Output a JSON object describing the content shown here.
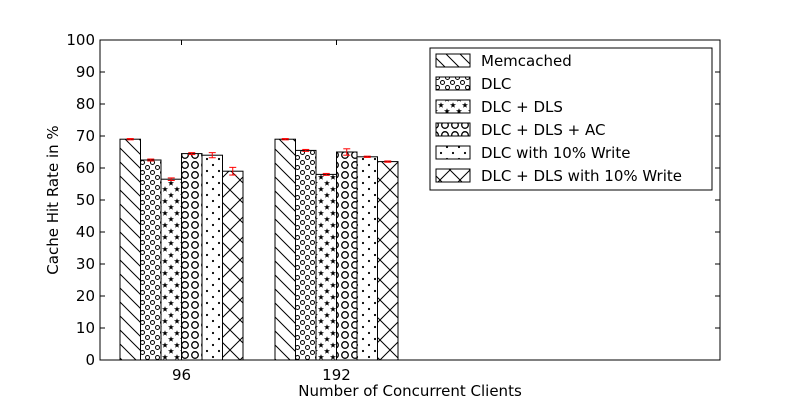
{
  "chart_data": {
    "type": "bar",
    "xlabel": "Number of Concurrent Clients",
    "ylabel": "Cache Hit Rate in %",
    "ylim": [
      0,
      100
    ],
    "yticks": [
      0,
      10,
      20,
      30,
      40,
      50,
      60,
      70,
      80,
      90,
      100
    ],
    "categories": [
      "96",
      "192"
    ],
    "legend_position": "top-right",
    "error_bar_color": "#ff0000",
    "series": [
      {
        "name": "Memcached",
        "pattern": "diagonal",
        "values": [
          69,
          69
        ],
        "errors": [
          0.2,
          0.2
        ]
      },
      {
        "name": "DLC",
        "pattern": "small-circles",
        "values": [
          62.5,
          65.5
        ],
        "errors": [
          0.3,
          0.3
        ]
      },
      {
        "name": "DLC + DLS",
        "pattern": "stars",
        "values": [
          56.5,
          58
        ],
        "errors": [
          0.4,
          0.3
        ]
      },
      {
        "name": "DLC + DLS + AC",
        "pattern": "big-circles",
        "values": [
          64.5,
          65
        ],
        "errors": [
          0.3,
          1.0
        ]
      },
      {
        "name": "DLC with 10% Write",
        "pattern": "dots",
        "values": [
          64,
          63.5
        ],
        "errors": [
          0.8,
          0.2
        ]
      },
      {
        "name": "DLC + DLS with 10% Write",
        "pattern": "crosshatch",
        "values": [
          59,
          62
        ],
        "errors": [
          1.2,
          0.2
        ]
      }
    ]
  }
}
